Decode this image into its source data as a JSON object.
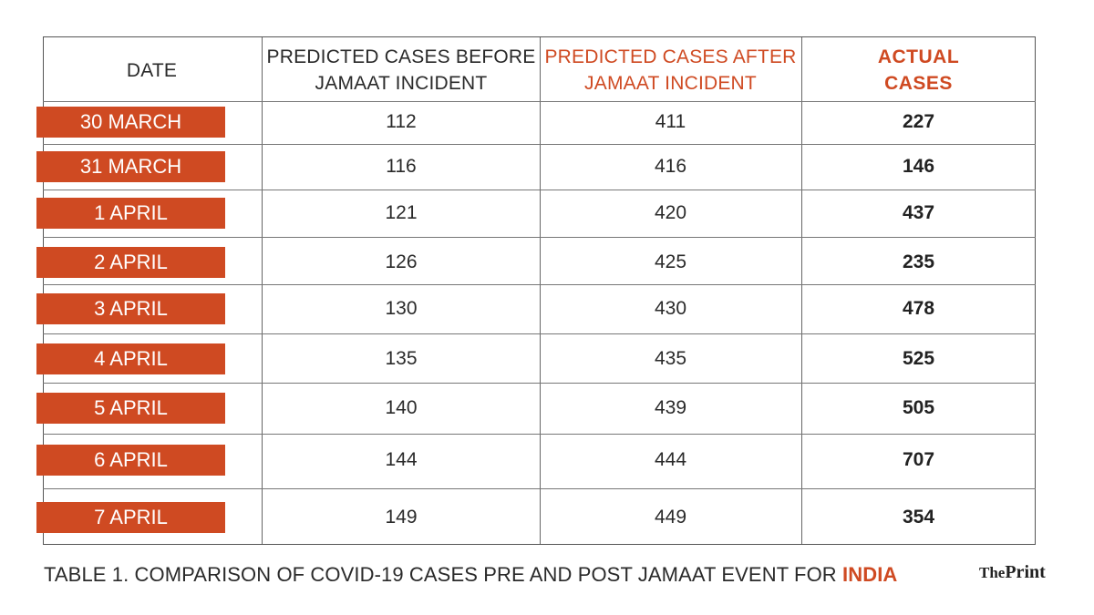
{
  "chart_data": {
    "type": "table",
    "columns": [
      "DATE",
      "PREDICTED CASES BEFORE JAMAAT INCIDENT",
      "PREDICTED CASES AFTER JAMAAT INCIDENT",
      "ACTUAL CASES"
    ],
    "header_lines": {
      "before": [
        "PREDICTED CASES BEFORE",
        "JAMAAT INCIDENT"
      ],
      "after": [
        "PREDICTED CASES AFTER",
        "JAMAAT INCIDENT"
      ],
      "actual": [
        "ACTUAL",
        "CASES"
      ]
    },
    "rows": [
      {
        "date": "30 MARCH",
        "before": "112",
        "after": "411",
        "actual": "227"
      },
      {
        "date": "31 MARCH",
        "before": "116",
        "after": "416",
        "actual": "146"
      },
      {
        "date": "1 APRIL",
        "before": "121",
        "after": "420",
        "actual": "437"
      },
      {
        "date": "2 APRIL",
        "before": "126",
        "after": "425",
        "actual": "235"
      },
      {
        "date": "3 APRIL",
        "before": "130",
        "after": "430",
        "actual": "478"
      },
      {
        "date": "4 APRIL",
        "before": "135",
        "after": "435",
        "actual": "525"
      },
      {
        "date": "5 APRIL",
        "before": "140",
        "after": "439",
        "actual": "505"
      },
      {
        "date": "6 APRIL",
        "before": "144",
        "after": "444",
        "actual": "707"
      },
      {
        "date": "7 APRIL",
        "before": "149",
        "after": "449",
        "actual": "354"
      }
    ]
  },
  "caption": {
    "prefix": "TABLE 1. COMPARISON OF COVID-19 CASES PRE AND POST JAMAAT EVENT FOR ",
    "highlight": "INDIA"
  },
  "logo": {
    "the": "The",
    "print": "Print"
  },
  "colors": {
    "accent": "#cf4a22",
    "text": "#2a2a2a",
    "border": "#666666"
  }
}
